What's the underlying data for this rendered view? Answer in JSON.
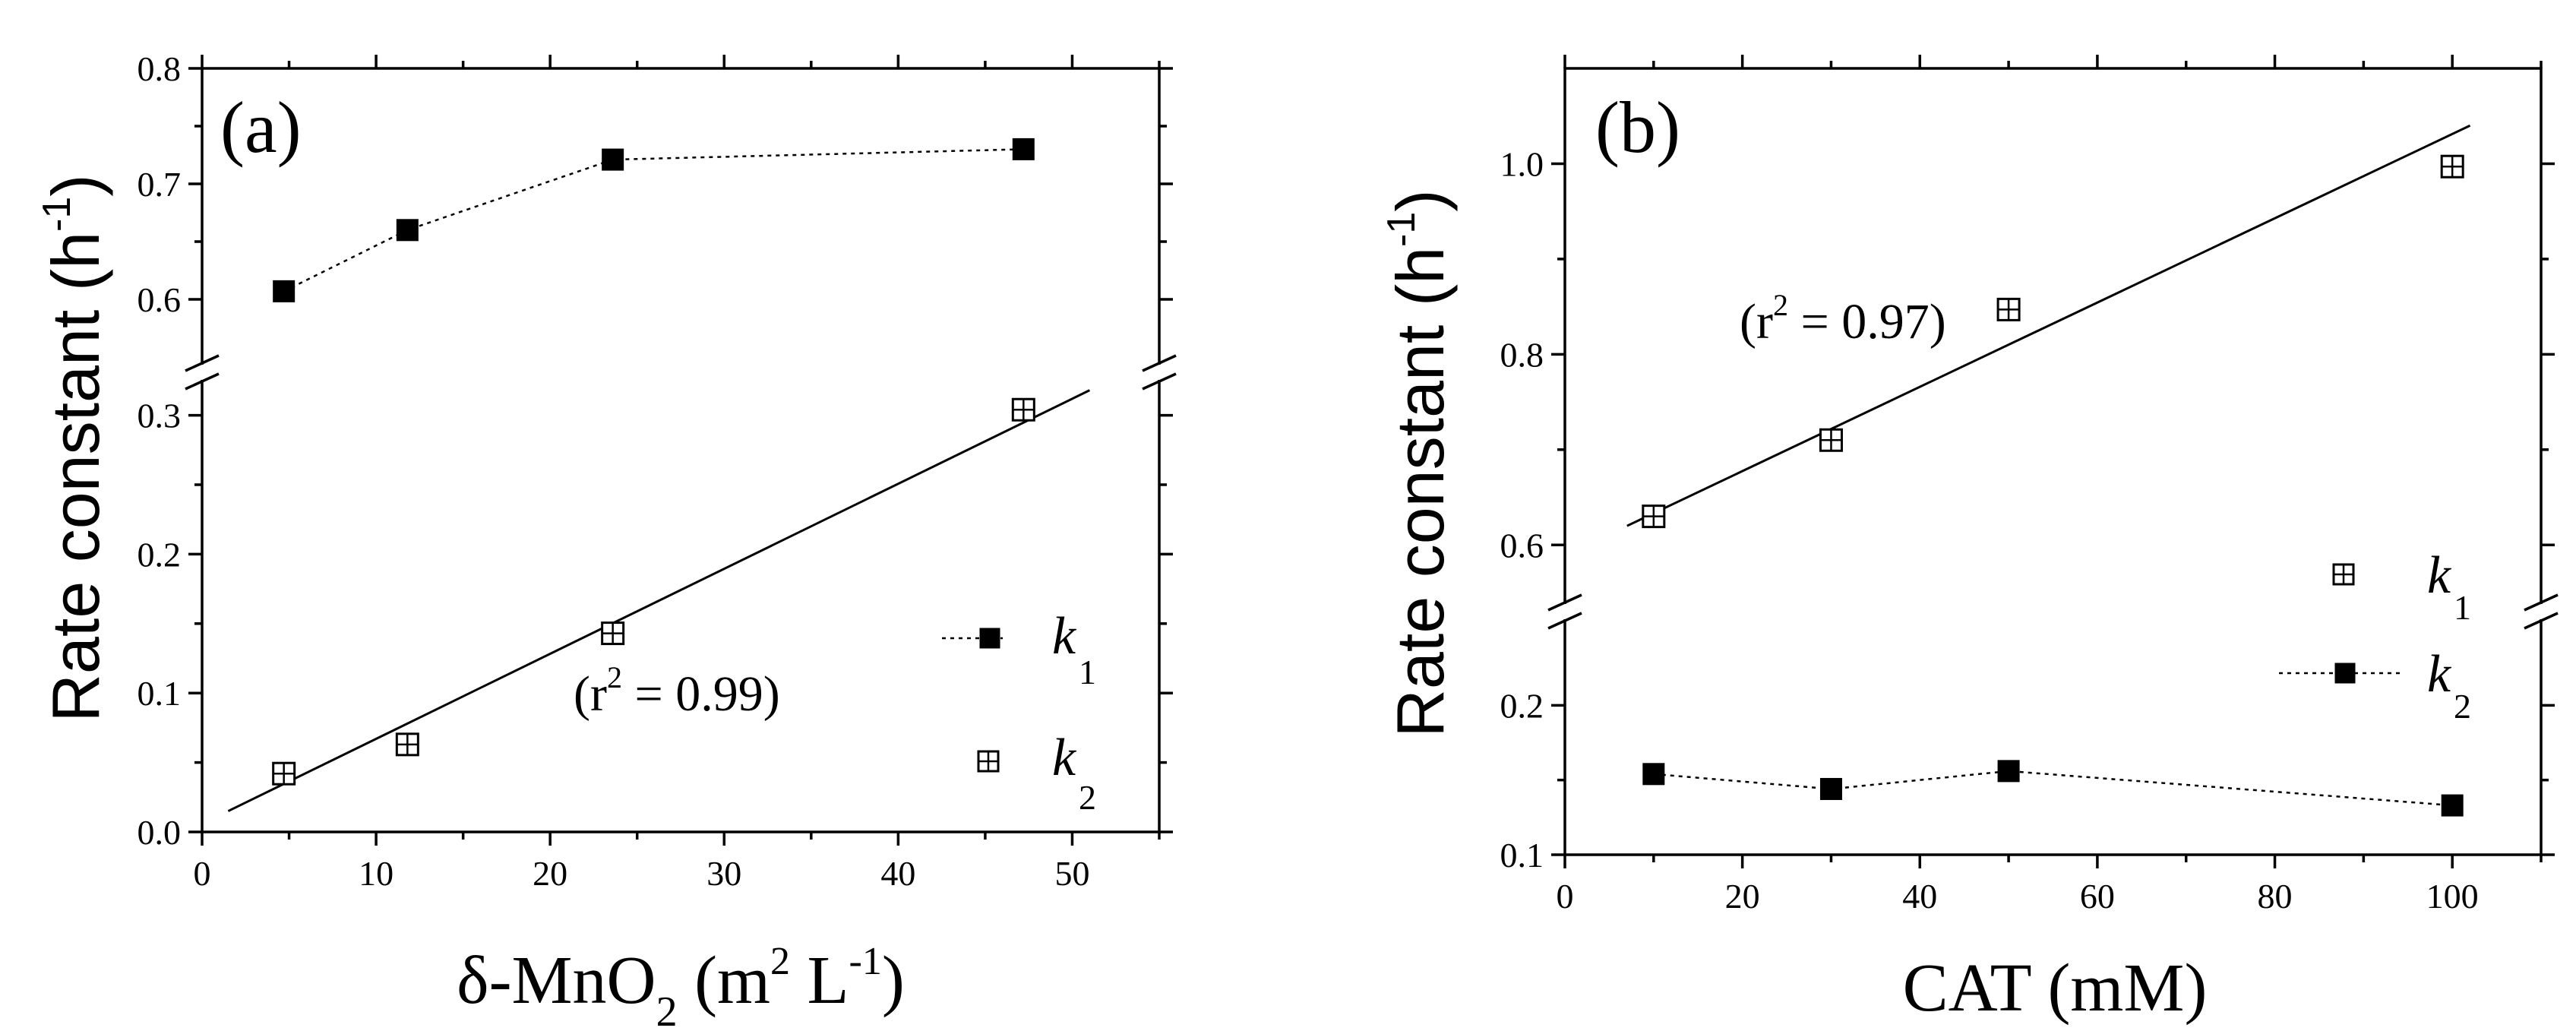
{
  "chart_data": [
    {
      "type": "scatter",
      "panel_label": "(a)",
      "xlabel": "δ-MnO",
      "xlabel_sub": "2",
      "xlabel_unit": " (m",
      "xlabel_unit_sup": "2",
      "xlabel_unit_tail": " L",
      "xlabel_unit_tail_sup": "-1",
      "xlabel_close": ")",
      "ylabel": "Rate constant  (h",
      "ylabel_sup": "-1",
      "ylabel_close": ")",
      "xlim": [
        0,
        55
      ],
      "ylim_lower": [
        0.0,
        0.32
      ],
      "ylim_upper": [
        0.55,
        0.8
      ],
      "axis_break": true,
      "xticks": [
        0,
        10,
        20,
        30,
        40,
        50
      ],
      "xtick_labels": [
        "0",
        "10",
        "20",
        "30",
        "40",
        "50"
      ],
      "yticks_lower": [
        0.0,
        0.1,
        0.2,
        0.3
      ],
      "ytick_labels_lower": [
        "0.0",
        "0.1",
        "0.2",
        "0.3"
      ],
      "yticks_upper": [
        0.6,
        0.7,
        0.8
      ],
      "ytick_labels_upper": [
        "0.6",
        "0.7",
        "0.8"
      ],
      "series": [
        {
          "name": "k1",
          "marker": "filled-square",
          "line": "dotted",
          "segment": "upper",
          "x": [
            4.7,
            11.8,
            23.6,
            47.2
          ],
          "y": [
            0.607,
            0.66,
            0.721,
            0.73
          ]
        },
        {
          "name": "k2",
          "marker": "crossed-square",
          "line": "none",
          "segment": "lower",
          "x": [
            4.7,
            11.8,
            23.6,
            47.2
          ],
          "y": [
            0.042,
            0.063,
            0.143,
            0.304
          ]
        }
      ],
      "fit_line": {
        "x": [
          1.5,
          51.0
        ],
        "y": [
          0.015,
          0.318
        ],
        "segment": "lower"
      },
      "r2_text": "(r",
      "r2_sup": "2",
      "r2_value": " = 0.99)",
      "legend": [
        {
          "k": "k",
          "sub": "1",
          "marker": "filled-square",
          "line": "dotted"
        },
        {
          "k": "k",
          "sub": "2",
          "marker": "crossed-square",
          "line": "none"
        }
      ],
      "legend_position": "right"
    },
    {
      "type": "scatter",
      "panel_label": "(b)",
      "xlabel": "CAT (mM)",
      "ylabel": "Rate constant (h",
      "ylabel_sup": "-1",
      "ylabel_close": ")",
      "xlim": [
        0,
        110
      ],
      "ylim_lower": [
        0.1,
        0.25
      ],
      "ylim_upper": [
        0.55,
        1.1
      ],
      "axis_break": true,
      "xticks": [
        0,
        20,
        40,
        60,
        80,
        100
      ],
      "xtick_labels": [
        "0",
        "20",
        "40",
        "60",
        "80",
        "100"
      ],
      "yticks_lower": [
        0.1,
        0.2
      ],
      "ytick_labels_lower": [
        "0.1",
        "0.2"
      ],
      "yticks_upper": [
        0.6,
        0.8,
        1.0
      ],
      "ytick_labels_upper": [
        "0.6",
        "0.8",
        "1.0"
      ],
      "series": [
        {
          "name": "k1",
          "marker": "crossed-square",
          "line": "none",
          "segment": "upper",
          "x": [
            10,
            30,
            50,
            100
          ],
          "y": [
            0.63,
            0.71,
            0.847,
            0.997
          ]
        },
        {
          "name": "k2",
          "marker": "filled-square",
          "line": "dotted",
          "segment": "lower",
          "x": [
            10,
            30,
            50,
            100
          ],
          "y": [
            0.154,
            0.144,
            0.156,
            0.133
          ]
        }
      ],
      "fit_line": {
        "x": [
          7,
          102
        ],
        "y": [
          0.62,
          1.04
        ],
        "segment": "upper"
      },
      "r2_text": "(r",
      "r2_sup": "2",
      "r2_value": " = 0.97)",
      "legend": [
        {
          "k": "k",
          "sub": "1",
          "marker": "crossed-square",
          "line": "none"
        },
        {
          "k": "k",
          "sub": "2",
          "marker": "filled-square",
          "line": "dotted"
        }
      ],
      "legend_position": "right"
    }
  ]
}
